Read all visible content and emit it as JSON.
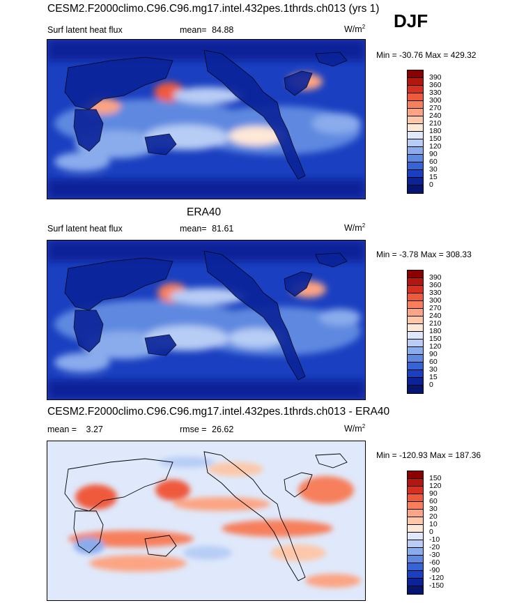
{
  "djf": "DJF",
  "panels": [
    {
      "title": "CESM2.F2000climo.C96.C96.mg17.intel.432pes.1thrds.ch013 (yrs 1)",
      "left_label": "Surf latent heat flux",
      "stat_label": "mean=",
      "stat_value": "84.88",
      "units": "W/m",
      "units_sup": "2",
      "minmax": "Min = -30.76 Max = 429.32",
      "colorbar_labels": [
        "390",
        "360",
        "330",
        "300",
        "270",
        "240",
        "210",
        "180",
        "150",
        "120",
        "90",
        "60",
        "30",
        "15",
        "0"
      ],
      "colorbar_colors": [
        "#8b0000",
        "#b3170d",
        "#d7301f",
        "#ef5a3c",
        "#f77f5c",
        "#fca483",
        "#fdc7a9",
        "#fee8d8",
        "#dfe9fb",
        "#b7cdf5",
        "#8aacec",
        "#5e89e0",
        "#3564d4",
        "#1a3fc0",
        "#0a2399",
        "#061570"
      ]
    },
    {
      "title": "ERA40",
      "left_label": "Surf latent heat flux",
      "stat_label": "mean=",
      "stat_value": "81.61",
      "units": "W/m",
      "units_sup": "2",
      "minmax": "Min =  -3.78 Max = 308.33",
      "colorbar_labels": [
        "390",
        "360",
        "330",
        "300",
        "270",
        "240",
        "210",
        "180",
        "150",
        "120",
        "90",
        "60",
        "30",
        "15",
        "0"
      ],
      "colorbar_colors": [
        "#8b0000",
        "#b3170d",
        "#d7301f",
        "#ef5a3c",
        "#f77f5c",
        "#fca483",
        "#fdc7a9",
        "#fee8d8",
        "#dfe9fb",
        "#b7cdf5",
        "#8aacec",
        "#5e89e0",
        "#3564d4",
        "#1a3fc0",
        "#0a2399",
        "#061570"
      ]
    },
    {
      "title": "CESM2.F2000climo.C96.C96.mg17.intel.432pes.1thrds.ch013 - ERA40",
      "left_label": "mean =",
      "left_value": "3.27",
      "stat_label": "rmse =",
      "stat_value": "26.62",
      "units": "W/m",
      "units_sup": "2",
      "minmax": "Min = -120.93 Max = 187.36",
      "colorbar_labels": [
        "150",
        "120",
        "90",
        "60",
        "30",
        "20",
        "10",
        "0",
        "-10",
        "-20",
        "-30",
        "-60",
        "-90",
        "-120",
        "-150"
      ],
      "colorbar_colors": [
        "#8b0000",
        "#b3170d",
        "#d7301f",
        "#ef5a3c",
        "#f77f5c",
        "#fca483",
        "#fdc7a9",
        "#fee8d8",
        "#dfe9fb",
        "#b7cdf5",
        "#8aacec",
        "#5e89e0",
        "#3564d4",
        "#1a3fc0",
        "#0a2399",
        "#061570"
      ]
    }
  ]
}
